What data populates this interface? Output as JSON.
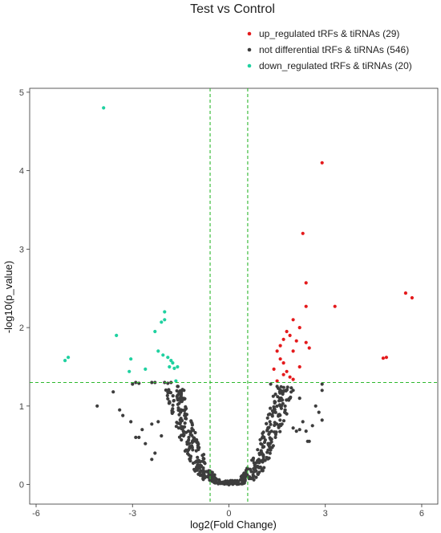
{
  "chart_data": {
    "type": "scatter",
    "title": "Test vs Control",
    "xlabel": "log2(Fold Change)",
    "ylabel": "-log10(p_value)",
    "xlim": [
      -6.2,
      6.5
    ],
    "ylim": [
      -0.25,
      5.05
    ],
    "x_ticks": [
      -6,
      -3,
      0,
      3,
      6
    ],
    "y_ticks": [
      0,
      1,
      2,
      3,
      4,
      5
    ],
    "grid": false,
    "legend_position": "top-right",
    "thresholds": {
      "x": [
        -0.585,
        0.585
      ],
      "y": 1.3,
      "line_color": "#2eb82e",
      "line_style": "dashed"
    },
    "series": [
      {
        "name": "up_regulated tRFs & tiRNAs (29)",
        "color": "#e41a1c",
        "points": [
          [
            2.9,
            4.1
          ],
          [
            2.3,
            3.2
          ],
          [
            2.4,
            2.57
          ],
          [
            2.4,
            2.27
          ],
          [
            3.3,
            2.27
          ],
          [
            5.5,
            2.44
          ],
          [
            5.7,
            2.38
          ],
          [
            4.8,
            1.61
          ],
          [
            4.9,
            1.62
          ],
          [
            2.2,
            2.0
          ],
          [
            2.0,
            2.1
          ],
          [
            1.8,
            1.95
          ],
          [
            1.9,
            1.9
          ],
          [
            1.7,
            1.85
          ],
          [
            2.1,
            1.83
          ],
          [
            1.6,
            1.77
          ],
          [
            2.4,
            1.81
          ],
          [
            2.5,
            1.74
          ],
          [
            1.5,
            1.7
          ],
          [
            2.0,
            1.7
          ],
          [
            1.6,
            1.6
          ],
          [
            1.7,
            1.55
          ],
          [
            2.2,
            1.5
          ],
          [
            1.4,
            1.47
          ],
          [
            1.8,
            1.44
          ],
          [
            1.7,
            1.4
          ],
          [
            1.9,
            1.37
          ],
          [
            2.0,
            1.34
          ],
          [
            1.5,
            1.32
          ]
        ]
      },
      {
        "name": "not differential tRFs & tiRNAs (546)",
        "color": "#3d3d3d",
        "points": [
          [
            -4.1,
            1.0
          ],
          [
            -3.6,
            1.18
          ],
          [
            -3.4,
            0.95
          ],
          [
            -3.3,
            0.88
          ],
          [
            -3.05,
            0.8
          ],
          [
            -2.9,
            0.6
          ],
          [
            -2.7,
            0.7
          ],
          [
            -2.6,
            0.52
          ],
          [
            -2.4,
            0.77
          ],
          [
            -2.2,
            0.8
          ],
          [
            -2.1,
            0.62
          ],
          [
            -3.0,
            1.28
          ],
          [
            -2.9,
            1.3
          ],
          [
            -2.8,
            1.29
          ],
          [
            -2.4,
            1.3
          ],
          [
            -2.3,
            1.3
          ],
          [
            -2.0,
            1.3
          ],
          [
            -1.9,
            1.29
          ],
          [
            -1.8,
            1.3
          ],
          [
            -1.4,
            1.2
          ],
          [
            -1.5,
            1.15
          ],
          [
            -1.6,
            1.25
          ],
          [
            -2.3,
            0.4
          ],
          [
            -2.4,
            0.32
          ],
          [
            -2.8,
            0.6
          ],
          [
            2.9,
            0.82
          ],
          [
            2.8,
            0.92
          ],
          [
            2.4,
            0.68
          ],
          [
            2.5,
            0.55
          ],
          [
            2.2,
            0.7
          ],
          [
            2.0,
            0.72
          ],
          [
            2.3,
            0.8
          ],
          [
            2.7,
            1.0
          ],
          [
            2.9,
            1.2
          ],
          [
            2.9,
            1.28
          ],
          [
            2.2,
            1.1
          ],
          [
            2.0,
            1.2
          ],
          [
            1.6,
            1.0
          ],
          [
            1.8,
            0.9
          ],
          [
            1.5,
            1.25
          ],
          [
            1.3,
            1.28
          ],
          [
            2.45,
            0.55
          ],
          [
            2.6,
            0.75
          ],
          [
            2.1,
            0.68
          ],
          [
            1.75,
            0.95
          ]
        ],
        "generated_points": {
          "count": 501,
          "distribution": "v-shaped volcano cone around x = 0",
          "y_range": [
            0,
            1.3
          ],
          "x_range": [
            -2.3,
            2.3
          ]
        }
      },
      {
        "name": "down_regulated tRFs & tiRNAs (20)",
        "color": "#1fd1a0",
        "points": [
          [
            -3.9,
            4.8
          ],
          [
            -2.0,
            2.2
          ],
          [
            -2.0,
            2.1
          ],
          [
            -2.1,
            2.07
          ],
          [
            -2.3,
            1.95
          ],
          [
            -3.5,
            1.9
          ],
          [
            -3.05,
            1.6
          ],
          [
            -2.2,
            1.7
          ],
          [
            -2.05,
            1.65
          ],
          [
            -1.9,
            1.62
          ],
          [
            -1.8,
            1.58
          ],
          [
            -1.75,
            1.55
          ],
          [
            -1.85,
            1.5
          ],
          [
            -1.7,
            1.48
          ],
          [
            -1.6,
            1.5
          ],
          [
            -5.1,
            1.58
          ],
          [
            -5.0,
            1.62
          ],
          [
            -3.1,
            1.44
          ],
          [
            -2.6,
            1.47
          ],
          [
            -1.65,
            1.32
          ]
        ]
      }
    ]
  }
}
